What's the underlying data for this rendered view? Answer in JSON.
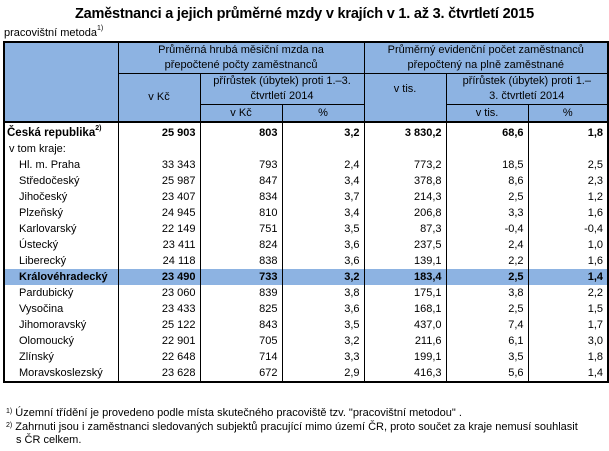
{
  "title": "Zaměstnanci a jejich průměrné mzdy v krajích v 1. až 3. čtvrtletí 2015",
  "subtitle": "pracovištní metoda",
  "subtitle_note": "1)",
  "header": {
    "wage_group": "Průměrná hrubá měsiční mzda na přepočtené počty zaměstnanců",
    "count_group": "Průměrný evidenční počet zaměstnanců přepočtený na plně zaměstnané",
    "v_kc": "v Kč",
    "increase": "přírůstek (úbytek) proti 1.–3. čtvrtletí 2014",
    "v_tis": "v tis.",
    "sub_v_kc": "v Kč",
    "pct": "%",
    "sub_v_tis": "v tis.",
    "pct2": "%"
  },
  "total": {
    "name": "Česká republika",
    "note": "2)",
    "values": [
      "25 903",
      "803",
      "3,2",
      "3 830,2",
      "68,6",
      "1,8"
    ]
  },
  "breakdown_label": "v tom kraje:",
  "rows": [
    {
      "name": "Hl. m. Praha",
      "values": [
        "33 343",
        "793",
        "2,4",
        "773,2",
        "18,5",
        "2,5"
      ]
    },
    {
      "name": "Středočeský",
      "values": [
        "25 987",
        "847",
        "3,4",
        "378,8",
        "8,6",
        "2,3"
      ]
    },
    {
      "name": "Jihočeský",
      "values": [
        "23 407",
        "834",
        "3,7",
        "214,3",
        "2,5",
        "1,2"
      ]
    },
    {
      "name": "Plzeňský",
      "values": [
        "24 945",
        "810",
        "3,4",
        "206,8",
        "3,3",
        "1,6"
      ]
    },
    {
      "name": "Karlovarský",
      "values": [
        "22 149",
        "751",
        "3,5",
        "87,3",
        "-0,4",
        "-0,4"
      ]
    },
    {
      "name": "Ústecký",
      "values": [
        "23 411",
        "824",
        "3,6",
        "237,5",
        "2,4",
        "1,0"
      ]
    },
    {
      "name": "Liberecký",
      "values": [
        "24 118",
        "838",
        "3,6",
        "139,1",
        "2,2",
        "1,6"
      ]
    },
    {
      "name": "Královéhradecký",
      "values": [
        "23 490",
        "733",
        "3,2",
        "183,4",
        "2,5",
        "1,4"
      ],
      "highlight": true
    },
    {
      "name": "Pardubický",
      "values": [
        "23 060",
        "839",
        "3,8",
        "175,1",
        "3,8",
        "2,2"
      ]
    },
    {
      "name": "Vysočina",
      "values": [
        "23 433",
        "825",
        "3,6",
        "168,1",
        "2,5",
        "1,5"
      ]
    },
    {
      "name": "Jihomoravský",
      "values": [
        "25 122",
        "843",
        "3,5",
        "437,0",
        "7,4",
        "1,7"
      ]
    },
    {
      "name": "Olomoucký",
      "values": [
        "22 901",
        "705",
        "3,2",
        "211,6",
        "6,1",
        "3,0"
      ]
    },
    {
      "name": "Zlínský",
      "values": [
        "22 648",
        "714",
        "3,3",
        "199,1",
        "3,5",
        "1,8"
      ]
    },
    {
      "name": "Moravskoslezský",
      "values": [
        "23 628",
        "672",
        "2,9",
        "416,3",
        "5,6",
        "1,4"
      ]
    }
  ],
  "footnotes": [
    {
      "mark": "1)",
      "text": "Územní třídění je provedeno podle místa skutečného pracoviště tzv. \"pracovištní metodou\" ."
    },
    {
      "mark": "2)",
      "text": "Zahrnuti jsou i zaměstnanci sledovaných subjektů pracující mimo území ČR, proto součet za kraje nemusí souhlasit s ČR celkem."
    }
  ]
}
